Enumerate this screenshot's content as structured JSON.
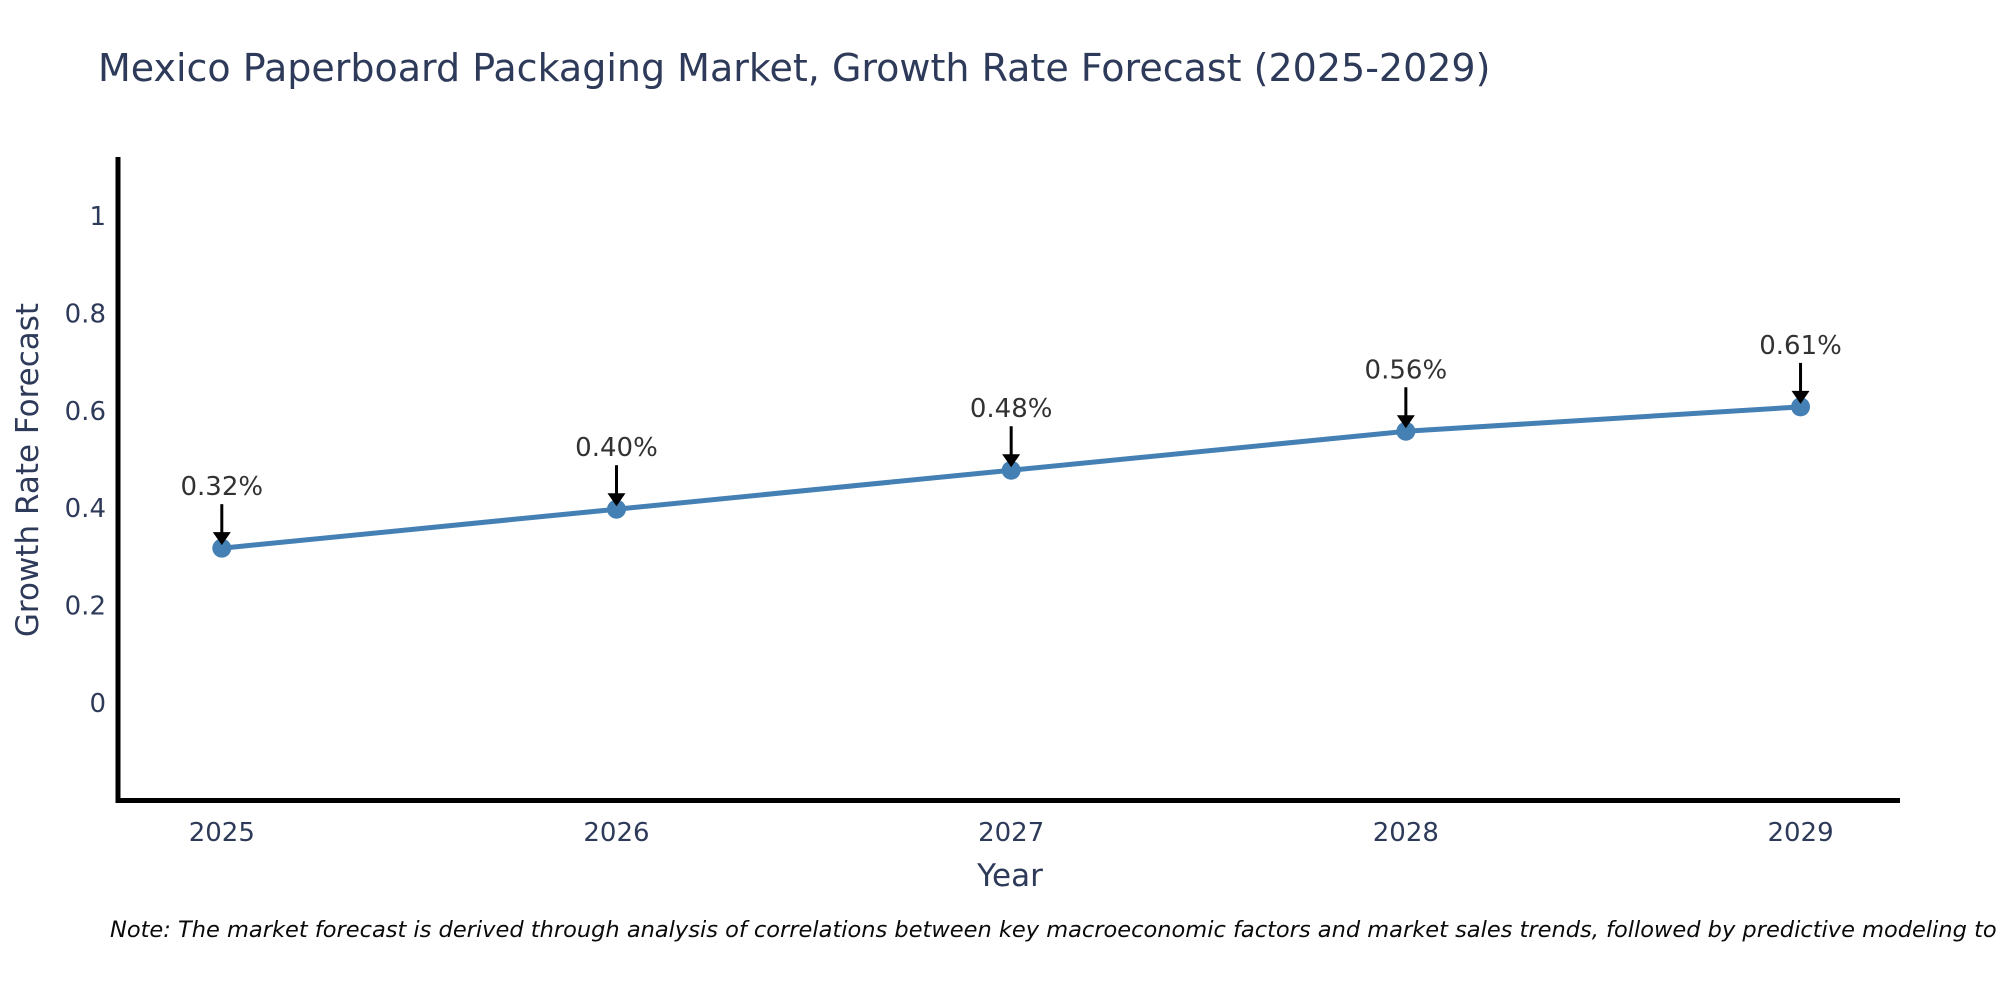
{
  "note": "Note: The market forecast is derived through analysis of correlations between key macroeconomic factors and market sales trends, followed by predictive modeling to project future sales",
  "colors": {
    "background": "#ffffff",
    "line": "#4580b4",
    "marker": "#4580b4",
    "spine": "#000000",
    "axis_text": "#2e3a59",
    "annotation_text": "#323232",
    "arrow": "#000000",
    "note_text": "#0a0a0a"
  },
  "chart_data": {
    "type": "line",
    "title": "Mexico Paperboard Packaging Market, Growth Rate Forecast (2025-2029)",
    "xlabel": "Year",
    "ylabel": "Growth Rate Forecast",
    "x": [
      2025,
      2026,
      2027,
      2028,
      2029
    ],
    "values": [
      0.32,
      0.4,
      0.48,
      0.56,
      0.61
    ],
    "point_labels": [
      "0.32%",
      "0.40%",
      "0.48%",
      "0.56%",
      "0.61%"
    ],
    "xtick_labels": [
      "2025",
      "2026",
      "2027",
      "2028",
      "2029"
    ],
    "yticks": [
      0,
      0.2,
      0.4,
      0.6,
      0.8,
      1
    ],
    "ytick_labels": [
      "0",
      "0.2",
      "0.4",
      "0.6",
      "0.8",
      "1"
    ],
    "xlim": [
      2024.737,
      2029.252
    ],
    "ylim": [
      -0.198,
      1.123
    ],
    "grid": false,
    "legend": false,
    "marker_style": "circle",
    "annotations_have_arrows": true
  }
}
